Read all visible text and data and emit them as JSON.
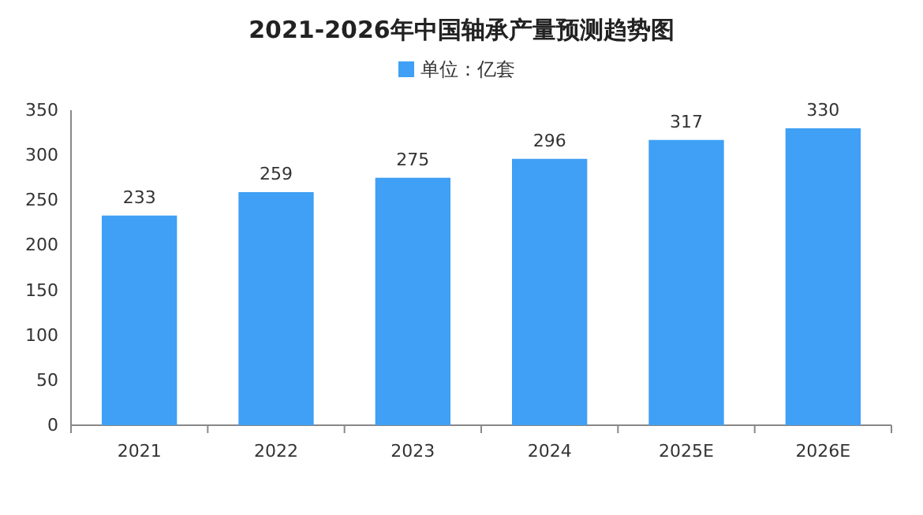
{
  "chart_data": {
    "type": "bar",
    "title": "2021-2026年中国轴承产量预测趋势图",
    "categories": [
      "2021",
      "2022",
      "2023",
      "2024",
      "2025E",
      "2026E"
    ],
    "series": [
      {
        "name": "单位：亿套",
        "color": "#3fa0f5",
        "values": [
          233,
          259,
          275,
          296,
          317,
          330
        ]
      }
    ],
    "ylim": [
      0,
      350
    ],
    "yticks": [
      0,
      50,
      100,
      150,
      200,
      250,
      300,
      350
    ],
    "data_labels": true,
    "legend": "top",
    "grid": false
  }
}
